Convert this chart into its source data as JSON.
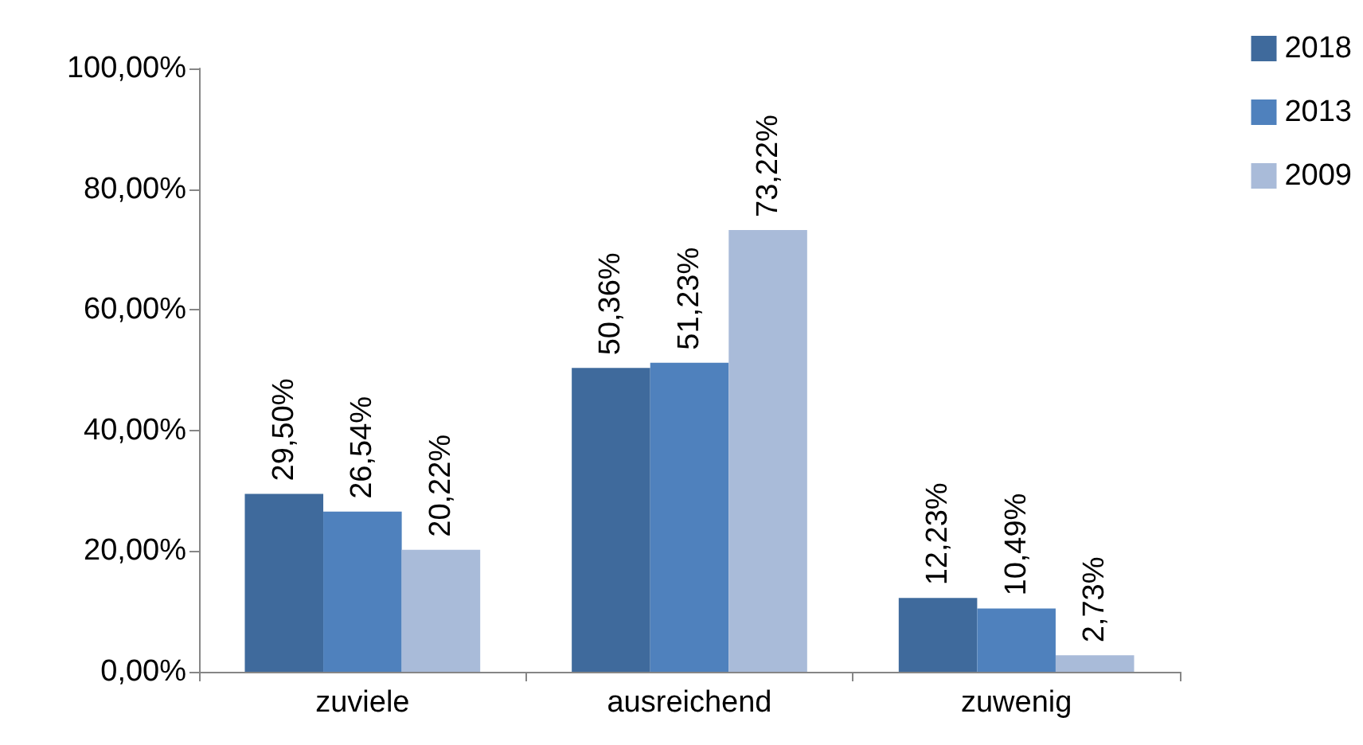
{
  "chart_data": {
    "type": "bar",
    "categories": [
      "zuviele",
      "ausreichend",
      "zuwenig"
    ],
    "series": [
      {
        "name": "2018",
        "color": "#3f6a9c",
        "values": [
          29.5,
          50.36,
          12.23
        ],
        "value_labels": [
          "29,50%",
          "50,36%",
          "12,23%"
        ]
      },
      {
        "name": "2013",
        "color": "#4f81bd",
        "values": [
          26.54,
          51.23,
          10.49
        ],
        "value_labels": [
          "26,54%",
          "51,23%",
          "10,49%"
        ]
      },
      {
        "name": "2009",
        "color": "#a9bbd9",
        "values": [
          20.22,
          73.22,
          2.73
        ],
        "value_labels": [
          "20,22%",
          "73,22%",
          "2,73%"
        ]
      }
    ],
    "ylim": [
      0,
      100
    ],
    "yticks": [
      {
        "value": 0,
        "label": "0,00%"
      },
      {
        "value": 20,
        "label": "20,00%"
      },
      {
        "value": 40,
        "label": "40,00%"
      },
      {
        "value": 60,
        "label": "60,00%"
      },
      {
        "value": 80,
        "label": "80,00%"
      },
      {
        "value": 100,
        "label": "100,00%"
      }
    ],
    "grid": false,
    "legend": "top right"
  }
}
